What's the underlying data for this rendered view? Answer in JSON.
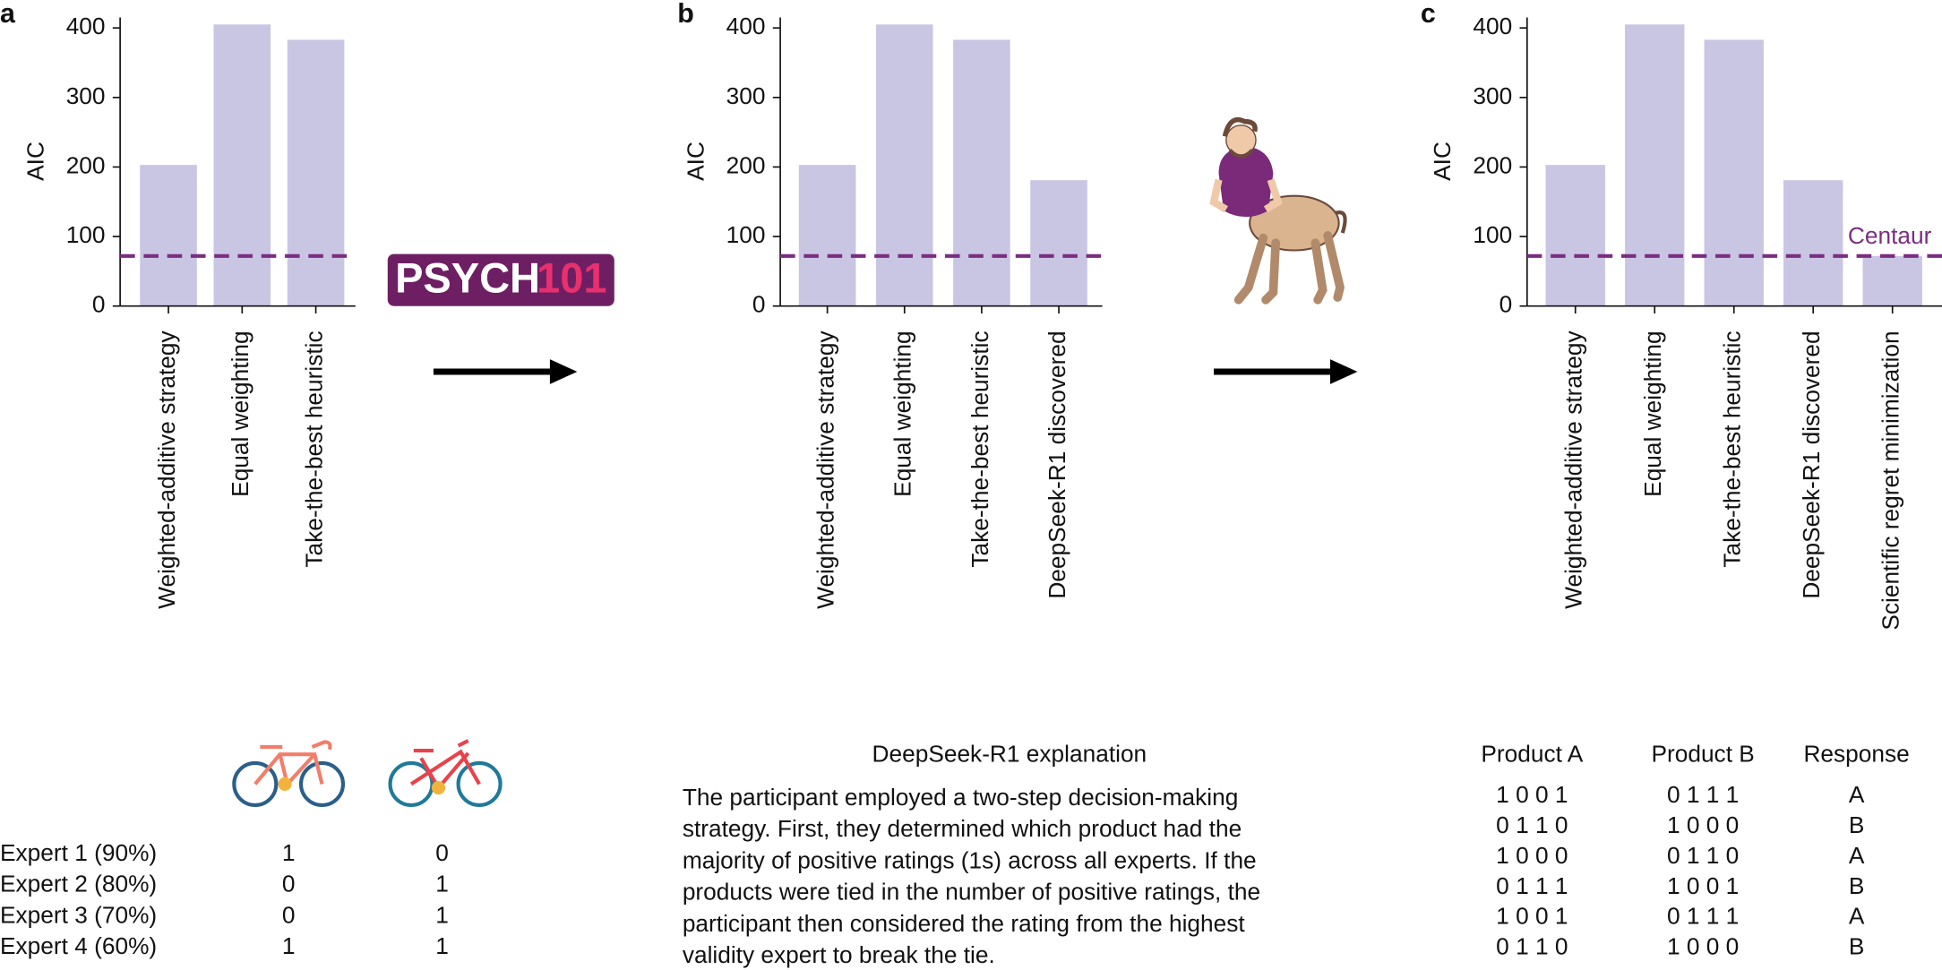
{
  "chart_data": [
    {
      "type": "bar",
      "panel": "a",
      "ylabel": "AIC",
      "categories": [
        "Weighted-additive strategy",
        "Equal weighting",
        "Take-the-best heuristic"
      ],
      "values": [
        203,
        405,
        383
      ],
      "color": "#c9c6e4",
      "ylim": [
        0,
        415
      ],
      "yticks": [
        0,
        100,
        200,
        300,
        400
      ],
      "hline": 72,
      "hline_color": "#7b2d82"
    },
    {
      "type": "bar",
      "panel": "b",
      "ylabel": "AIC",
      "categories": [
        "Weighted-additive strategy",
        "Equal weighting",
        "Take-the-best heuristic",
        "DeepSeek-R1 discovered"
      ],
      "values": [
        203,
        405,
        383,
        181
      ],
      "color": "#c9c6e4",
      "ylim": [
        0,
        415
      ],
      "yticks": [
        0,
        100,
        200,
        300,
        400
      ],
      "hline": 72,
      "hline_color": "#7b2d82"
    },
    {
      "type": "bar",
      "panel": "c",
      "ylabel": "AIC",
      "categories": [
        "Weighted-additive strategy",
        "Equal weighting",
        "Take-the-best heuristic",
        "DeepSeek-R1 discovered",
        "Scientific regret minimization"
      ],
      "values": [
        203,
        405,
        383,
        181,
        72
      ],
      "color": "#c9c6e4",
      "ylim": [
        0,
        415
      ],
      "yticks": [
        0,
        100,
        200,
        300,
        400
      ],
      "hline": 72,
      "hline_color": "#7b2d82",
      "hline_label": "Centaur"
    }
  ],
  "logo": {
    "left": "PSYCH",
    "right": "101"
  },
  "experts_table": {
    "rows": [
      [
        "Expert 1 (90%)",
        "1",
        "0"
      ],
      [
        "Expert 2 (80%)",
        "0",
        "1"
      ],
      [
        "Expert 3 (70%)",
        "0",
        "1"
      ],
      [
        "Expert 4 (60%)",
        "1",
        "1"
      ]
    ]
  },
  "explanation": {
    "title": "DeepSeek-R1 explanation",
    "lines": [
      "The participant employed a two-step decision-making",
      "strategy. First, they determined which product had the",
      "majority of positive ratings (1s) across all experts. If the",
      "products were tied in the number of positive ratings, the",
      "participant then considered the rating from the highest",
      "validity expert to break the tie."
    ]
  },
  "product_table": {
    "header": [
      "Product A",
      "Product B",
      "Response"
    ],
    "rows": [
      [
        "1 0 0 1",
        "0 1 1 1",
        "A"
      ],
      [
        "0 1 1 0",
        "1 0 0 0",
        "B"
      ],
      [
        "1 0 0 0",
        "0 1 1 0",
        "A"
      ],
      [
        "0 1 1 1",
        "1 0 0 1",
        "B"
      ],
      [
        "1 0 0 1",
        "0 1 1 1",
        "A"
      ],
      [
        "0 1 1 0",
        "1 0 0 0",
        "B"
      ]
    ]
  }
}
